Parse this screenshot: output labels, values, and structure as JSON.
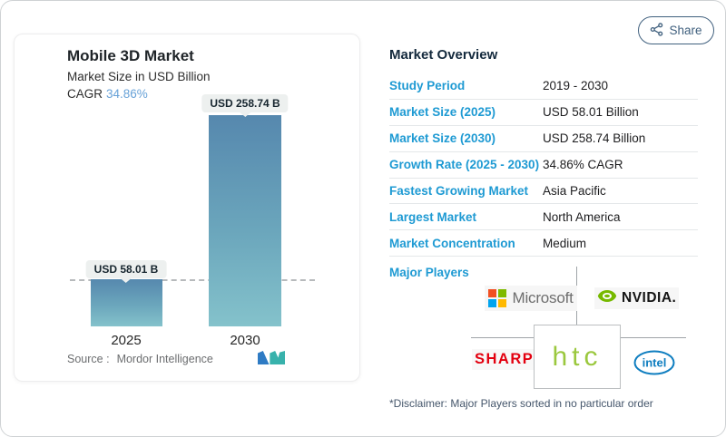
{
  "share": {
    "label": "Share"
  },
  "chart": {
    "title": "Mobile 3D Market",
    "subtitle": "Market Size in USD Billion",
    "cagr_label": "CAGR",
    "cagr_value": "34.86%",
    "bars": [
      {
        "year": "2025",
        "label": "USD 58.01 B"
      },
      {
        "year": "2030",
        "label": "USD 258.74 B"
      }
    ],
    "source_label": "Source :",
    "source_name": "Mordor Intelligence"
  },
  "chart_data": {
    "type": "bar",
    "title": "Mobile 3D Market",
    "subtitle": "Market Size in USD Billion",
    "categories": [
      "2025",
      "2030"
    ],
    "values": [
      58.01,
      258.74
    ],
    "unit": "USD Billion",
    "bar_labels": [
      "USD 58.01 B",
      "USD 258.74 B"
    ],
    "cagr": "34.86%",
    "reference_line": 58.01,
    "ylim": [
      0,
      275
    ],
    "grid": false,
    "bar_gradient": [
      "#5688ae",
      "#84c2cb"
    ]
  },
  "overview": {
    "heading": "Market Overview",
    "rows": [
      {
        "label": "Study Period",
        "value": "2019 - 2030"
      },
      {
        "label": "Market Size (2025)",
        "value": "USD 58.01 Billion"
      },
      {
        "label": "Market Size (2030)",
        "value": "USD 258.74 Billion"
      },
      {
        "label": "Growth Rate (2025 - 2030)",
        "value": "34.86% CAGR"
      },
      {
        "label": "Fastest Growing Market",
        "value": "Asia Pacific"
      },
      {
        "label": "Largest Market",
        "value": "North America"
      },
      {
        "label": "Market Concentration",
        "value": "Medium"
      }
    ],
    "major_players_label": "Major Players",
    "players": [
      "Microsoft",
      "NVIDIA.",
      "SHARP",
      "htc",
      "intel"
    ],
    "disclaimer": "*Disclaimer: Major Players sorted in no particular order"
  },
  "colors": {
    "accent_blue": "#1e9ad3",
    "heading_navy": "#142a3d",
    "cagr_blue": "#68a2d8",
    "bar_top": "#5688ae",
    "bar_bottom": "#84c2cb",
    "share_outline": "#40607e",
    "ms_red": "#f25022",
    "ms_green": "#7fba00",
    "ms_blue": "#00a4ef",
    "ms_yellow": "#ffb900",
    "nvidia_green": "#76b900",
    "sharp_red": "#e3000f",
    "htc_green": "#9bc83e",
    "intel_blue": "#0f7ec0"
  }
}
